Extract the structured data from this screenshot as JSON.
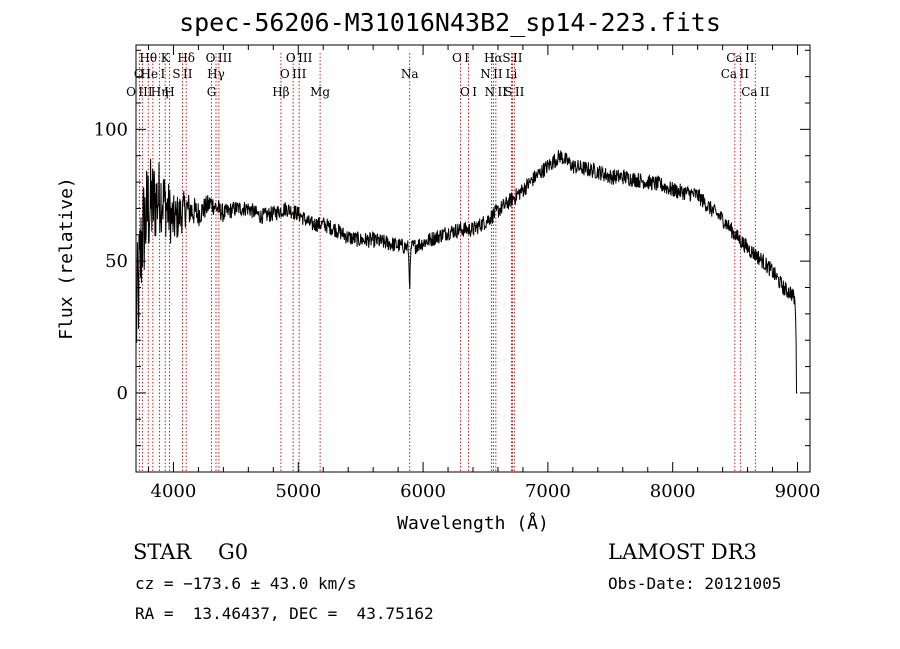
{
  "title": "spec-56206-M31016N43B2_sp14-223.fits",
  "classification": {
    "class": "STAR",
    "subclass": "G0"
  },
  "survey": "LAMOST DR3",
  "redshift_text": "cz = −173.6 ± 43.0 km/s",
  "obs_date": "Obs-Date: 20121005",
  "coords": "RA =  13.46437, DEC =  43.75162",
  "chart_data": {
    "type": "line",
    "xlabel": "Wavelength (Å)",
    "ylabel": "Flux (relative)",
    "xlim": [
      3700,
      9100
    ],
    "ylim": [
      -30,
      132
    ],
    "xticks": [
      4000,
      5000,
      6000,
      7000,
      8000,
      9000
    ],
    "yticks": [
      0,
      50,
      100
    ],
    "spectrum_anchors": {
      "x": [
        3700,
        3750,
        3800,
        3900,
        4000,
        4100,
        4200,
        4300,
        4400,
        4500,
        4600,
        4700,
        4800,
        4900,
        5000,
        5100,
        5200,
        5300,
        5400,
        5500,
        5600,
        5700,
        5800,
        5900,
        6000,
        6100,
        6200,
        6300,
        6400,
        6500,
        6600,
        6700,
        6800,
        6900,
        7000,
        7050,
        7100,
        7200,
        7300,
        7400,
        7500,
        7600,
        7700,
        7800,
        7900,
        8000,
        8100,
        8200,
        8300,
        8400,
        8500,
        8600,
        8700,
        8800,
        8900,
        8950,
        8980,
        9000
      ],
      "y": [
        25,
        60,
        70,
        75,
        65,
        70,
        68,
        72,
        68,
        70,
        70,
        67,
        68,
        70,
        68,
        64,
        64,
        62,
        59,
        58,
        58,
        57,
        56,
        55,
        57,
        59,
        61,
        62,
        62,
        65,
        69,
        73,
        77,
        82,
        86,
        88,
        90,
        86,
        85,
        84,
        82,
        82,
        81,
        80,
        79,
        77,
        76,
        75,
        70,
        66,
        60,
        55,
        51,
        46,
        39,
        38,
        35,
        0
      ],
      "noise": [
        25,
        22,
        20,
        14,
        10,
        7,
        5,
        4,
        3.5,
        3,
        3,
        3,
        3,
        3,
        3,
        3,
        3,
        3,
        3,
        3,
        3,
        3,
        3,
        3,
        3,
        3,
        3,
        3,
        3,
        3,
        3,
        3,
        3,
        3,
        3,
        3,
        3,
        3,
        3,
        3,
        3,
        3,
        3,
        3,
        3,
        3,
        3,
        3,
        3,
        3,
        3,
        3,
        3,
        3,
        3,
        3,
        3,
        0
      ]
    },
    "lines": [
      {
        "label": "O III",
        "wl": 3727,
        "row": 3
      },
      {
        "label": "O I",
        "wl": 3751,
        "row": 2
      },
      {
        "label": "Hθ",
        "wl": 3798,
        "row": 1
      },
      {
        "label": "He I",
        "wl": 3835,
        "row": 2
      },
      {
        "label": "Hη",
        "wl": 3889,
        "row": 3
      },
      {
        "label": "K",
        "wl": 3934,
        "row": 1
      },
      {
        "label": "H",
        "wl": 3968,
        "row": 3
      },
      {
        "label": "S II",
        "wl": 4072,
        "row": 2
      },
      {
        "label": "Hδ",
        "wl": 4102,
        "row": 1
      },
      {
        "label": "G",
        "wl": 4305,
        "row": 3
      },
      {
        "label": "Hγ",
        "wl": 4341,
        "row": 2
      },
      {
        "label": "O III",
        "wl": 4364,
        "row": 1
      },
      {
        "label": "Hβ",
        "wl": 4861,
        "row": 3
      },
      {
        "label": "O III",
        "wl": 4959,
        "row": 2
      },
      {
        "label": "O III",
        "wl": 5007,
        "row": 1
      },
      {
        "label": "Mg",
        "wl": 5175,
        "row": 3
      },
      {
        "label": "Na",
        "wl": 5893,
        "row": 2
      },
      {
        "label": "O I",
        "wl": 6300,
        "row": 1
      },
      {
        "label": "O I",
        "wl": 6364,
        "row": 3
      },
      {
        "label": "N II",
        "wl": 6548,
        "row": 2
      },
      {
        "label": "Hα",
        "wl": 6563,
        "row": 1
      },
      {
        "label": "N II",
        "wl": 6583,
        "row": 3
      },
      {
        "label": "Li",
        "wl": 6708,
        "row": 2
      },
      {
        "label": "S II",
        "wl": 6716,
        "row": 1
      },
      {
        "label": "S II",
        "wl": 6731,
        "row": 3
      },
      {
        "label": "Ca II",
        "wl": 8498,
        "row": 2
      },
      {
        "label": "Ca II",
        "wl": 8542,
        "row": 1
      },
      {
        "label": "Ca II",
        "wl": 8662,
        "row": 3
      }
    ],
    "line_color": "#cc0000"
  }
}
